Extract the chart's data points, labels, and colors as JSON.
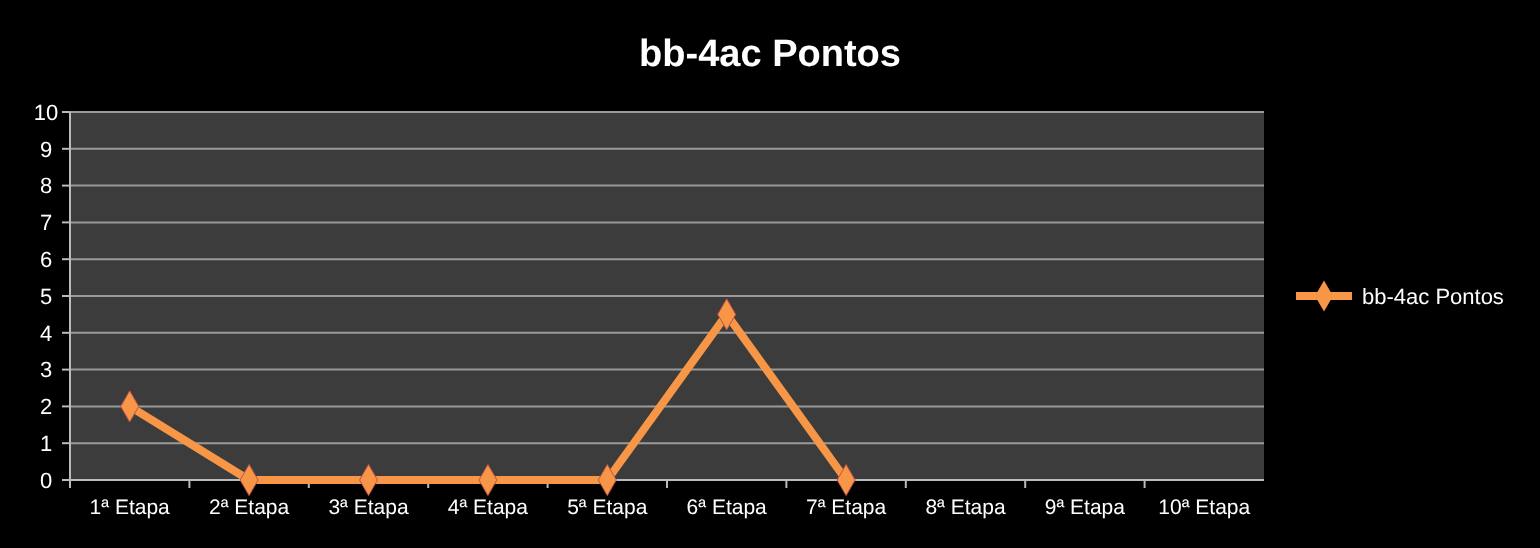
{
  "chart_data": {
    "type": "line",
    "title": "bb-4ac Pontos",
    "categories": [
      "1ª Etapa",
      "2ª Etapa",
      "3ª Etapa",
      "4ª Etapa",
      "5ª Etapa",
      "6ª Etapa",
      "7ª Etapa",
      "8ª Etapa",
      "9ª Etapa",
      "10ª Etapa"
    ],
    "series": [
      {
        "name": "bb-4ac Pontos",
        "color": "#f79646",
        "values": [
          2,
          0,
          0,
          0,
          0,
          4.5,
          0,
          null,
          null,
          null
        ]
      }
    ],
    "ylim": [
      0,
      10
    ],
    "yticks": [
      0,
      1,
      2,
      3,
      4,
      5,
      6,
      7,
      8,
      9,
      10
    ],
    "grid": "y",
    "legend": "right",
    "marker": "diamond",
    "line_style": "solid"
  }
}
